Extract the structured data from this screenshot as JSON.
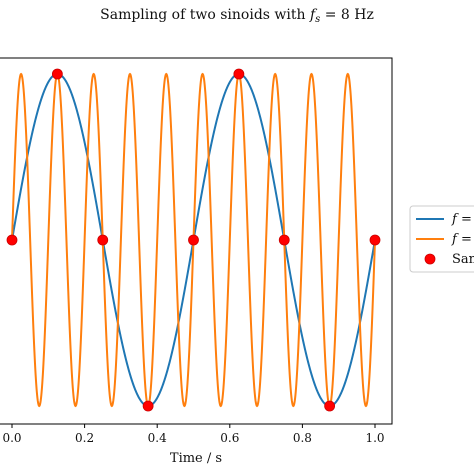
{
  "chart_data": {
    "type": "line",
    "title": "Sampling of two sinoids with f_s = 8 Hz",
    "title_parts": {
      "prefix": "Sampling of two sinoids with ",
      "f": "f",
      "sub": "s",
      "suffix": " = 8 Hz"
    },
    "xlabel": "Time / s",
    "ylabel": "",
    "xlim": [
      0.0,
      1.0
    ],
    "ylim": [
      -1.1,
      1.1
    ],
    "x_ticks": [
      {
        "value": 0.0,
        "label": "0.0"
      },
      {
        "value": 0.2,
        "label": "0.2"
      },
      {
        "value": 0.4,
        "label": "0.4"
      },
      {
        "value": 0.6,
        "label": "0.6"
      },
      {
        "value": 0.8,
        "label": "0.8"
      },
      {
        "value": 1.0,
        "label": "1.0"
      }
    ],
    "grid": false,
    "legend_position": "right, outside, partially cropped",
    "series": [
      {
        "name": "f = ",
        "kind": "sine",
        "frequency_hz": 2,
        "amplitude": 1.0,
        "color": "#1f77b4"
      },
      {
        "name": "f = ",
        "kind": "sine",
        "frequency_hz": 10,
        "amplitude": 1.0,
        "color": "#ff7f0e"
      }
    ],
    "samples": {
      "name": "Sam",
      "color": "#ff0000",
      "x": [
        0.0,
        0.125,
        0.25,
        0.375,
        0.5,
        0.625,
        0.75,
        0.875,
        1.0
      ],
      "y": [
        0.0,
        1.0,
        0.0,
        -1.0,
        0.0,
        1.0,
        0.0,
        -1.0,
        0.0
      ]
    }
  }
}
